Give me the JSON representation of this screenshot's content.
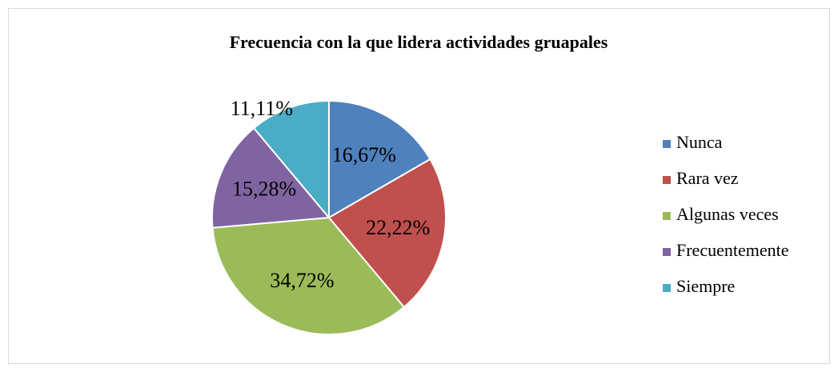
{
  "chart_data": {
    "type": "pie",
    "title": "Frecuencia con la que lidera actividades gruapales",
    "categories": [
      "Nunca",
      "Rara vez",
      "Algunas veces",
      "Frecuentemente",
      "Siempre"
    ],
    "values": [
      16.67,
      22.22,
      34.72,
      15.28,
      11.11
    ],
    "value_labels": [
      "16,67%",
      "22,22%",
      "34,72%",
      "15,28%",
      "11,11%"
    ],
    "colors": [
      "#4f81bd",
      "#c0504d",
      "#9bbb59",
      "#8064a2",
      "#4bacc6"
    ],
    "legend": "right"
  }
}
